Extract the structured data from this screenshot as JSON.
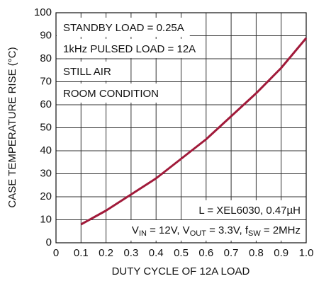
{
  "chart_data": {
    "type": "line",
    "xlabel": "DUTY CYCLE OF 12A LOAD",
    "ylabel": "CASE TEMPERATURE RISE (°C)",
    "x": [
      0.1,
      0.2,
      0.3,
      0.4,
      0.5,
      0.6,
      0.7,
      0.8,
      0.9,
      1.0
    ],
    "series": [
      {
        "color": "#a11a3a",
        "values": [
          8,
          14,
          21,
          28,
          36.5,
          45,
          55,
          65,
          76,
          89
        ]
      }
    ],
    "xlim": [
      0,
      1
    ],
    "ylim": [
      0,
      100
    ],
    "xticks": [
      0,
      0.1,
      0.2,
      0.3,
      0.4,
      0.5,
      0.6,
      0.7,
      0.8,
      0.9,
      {
        "value": 1,
        "label": "1.0"
      }
    ],
    "yticks": [
      0,
      10,
      20,
      30,
      40,
      50,
      60,
      70,
      80,
      90,
      100
    ],
    "grid": true,
    "annotations": [
      "STANDBY LOAD = 0.25A",
      "1kHz PULSED LOAD = 12A",
      "STILL AIR",
      "ROOM CONDITION",
      "L = XEL6030, 0.47µH"
    ],
    "conditions": [
      {
        "text": "V"
      },
      {
        "text": "IN",
        "sub": true
      },
      {
        "text": " = 12V, V"
      },
      {
        "text": "OUT",
        "sub": true
      },
      {
        "text": " = 3.3V, f"
      },
      {
        "text": "SW",
        "sub": true
      },
      {
        "text": " = 2MHz"
      }
    ]
  }
}
